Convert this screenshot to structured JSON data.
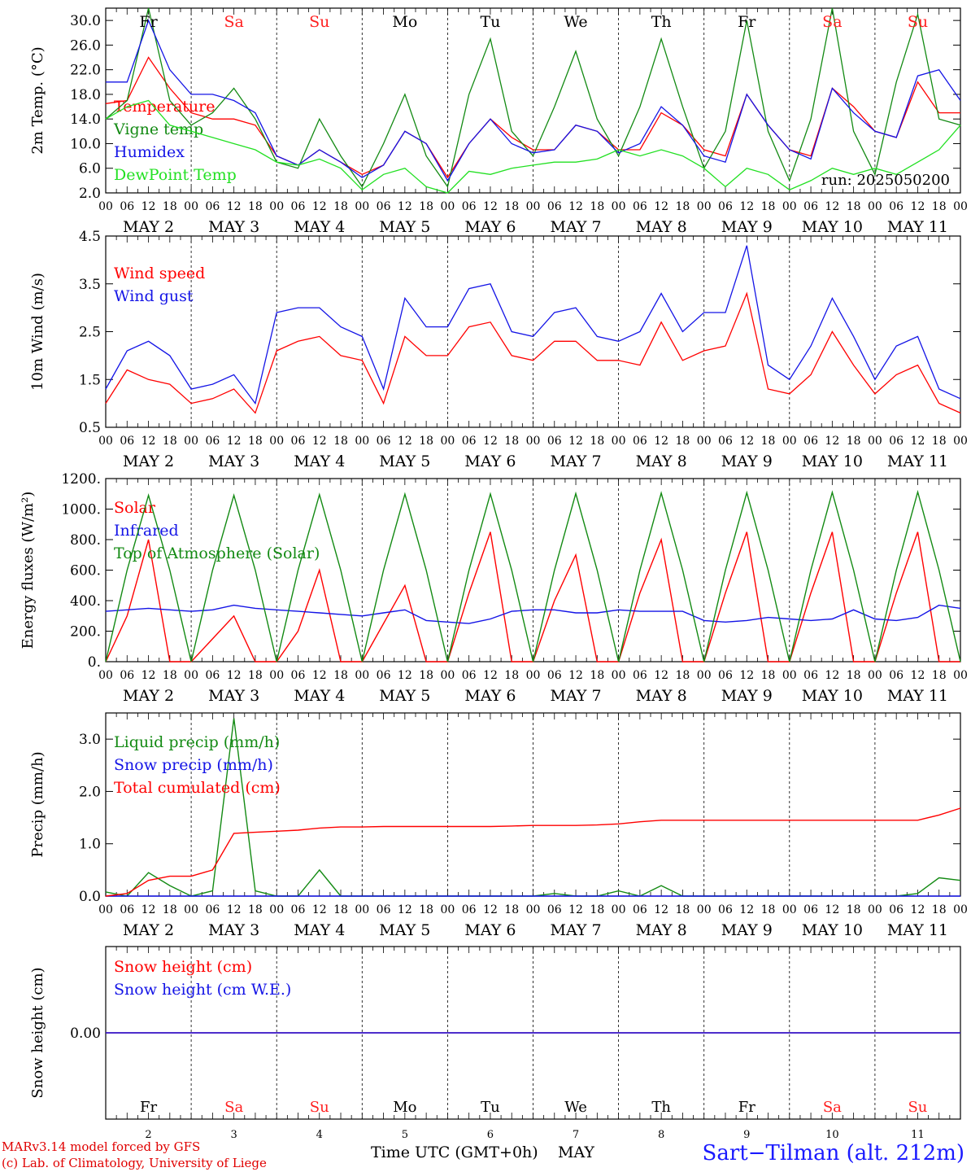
{
  "colors": {
    "red": "#ff0000",
    "green": "#138a13",
    "blue": "#1414e6",
    "lightgreen": "#22e022",
    "weekend": "#ff2020",
    "black": "#000000"
  },
  "run_label": "run: 2025050200",
  "footer": {
    "model": "MARv3.14 model forced by GFS",
    "lab": "(c) Lab. of Climatology, University of Liege",
    "time_axis": "Time UTC (GMT+0h)",
    "month": "MAY",
    "station": "Sart−Tilman (alt. 212m)"
  },
  "time_axis": {
    "hour_ticks": [
      "00",
      "06",
      "12",
      "18"
    ],
    "date_labels": [
      "MAY  2",
      "MAY  3",
      "MAY  4",
      "MAY  5",
      "MAY  6",
      "MAY  7",
      "MAY  8",
      "MAY  9",
      "MAY 10",
      "MAY 11"
    ],
    "weekdays": [
      "Fr",
      "Sa",
      "Su",
      "Mo",
      "Tu",
      "We",
      "Th",
      "Fr",
      "Sa",
      "Su"
    ],
    "weekend": [
      false,
      true,
      true,
      false,
      false,
      false,
      false,
      false,
      true,
      true
    ],
    "day_numbers": [
      "2",
      "3",
      "4",
      "5",
      "6",
      "7",
      "8",
      "9",
      "10",
      "11"
    ]
  },
  "chart_data": [
    {
      "type": "line",
      "ylabel": "2m Temp. (°C)",
      "ylim": [
        2,
        32
      ],
      "yticks": [
        "30.0",
        "26.0",
        "22.0",
        "18.0",
        "14.0",
        "10.0",
        "6.0",
        "2.0"
      ],
      "ytick_values": [
        30,
        26,
        22,
        18,
        14,
        10,
        6,
        2
      ],
      "x_hours": [
        0,
        6,
        12,
        18,
        24,
        30,
        36,
        42,
        48,
        54,
        60,
        66,
        72,
        78,
        84,
        90,
        96,
        102,
        108,
        114,
        120,
        126,
        132,
        138,
        144,
        150,
        156,
        162,
        168,
        174,
        180,
        186,
        192,
        198,
        204,
        210,
        216,
        222,
        228,
        234,
        240
      ],
      "series": [
        {
          "name": "Temperature",
          "color": "#ff0000",
          "values": [
            16.5,
            17,
            24,
            19,
            15,
            14,
            14,
            13,
            8,
            6.5,
            9,
            7,
            5,
            6.5,
            12,
            10,
            4.5,
            10,
            14,
            11,
            9,
            9,
            13,
            12,
            9,
            9,
            15,
            13,
            9,
            8,
            18,
            13,
            9,
            8,
            19,
            16,
            12,
            11,
            20,
            15,
            15
          ]
        },
        {
          "name": "Vigne temp",
          "color": "#138a13",
          "values": [
            14,
            17,
            32,
            17,
            13,
            15,
            19,
            14,
            7,
            6,
            14,
            8,
            3,
            10,
            18,
            8,
            3,
            18,
            27,
            12,
            8,
            16,
            25,
            14,
            8,
            16,
            27,
            16,
            6,
            12,
            30,
            12,
            4,
            14,
            32,
            12,
            5,
            20,
            31,
            14,
            13
          ]
        },
        {
          "name": "Humidex",
          "color": "#1414e6",
          "values": [
            20,
            20,
            30,
            22,
            18,
            18,
            17,
            15,
            8,
            6.5,
            9,
            7,
            4.5,
            6.5,
            12,
            10,
            4,
            10,
            14,
            10,
            8.5,
            9,
            13,
            12,
            8.5,
            10,
            16,
            13,
            8,
            7,
            18,
            13,
            9,
            7.5,
            19,
            15,
            12,
            11,
            21,
            22,
            17
          ]
        },
        {
          "name": "DewPoint Temp",
          "color": "#22e022",
          "values": [
            14,
            16,
            17,
            13,
            12,
            11,
            10,
            9,
            7,
            6.5,
            7.5,
            6,
            2.5,
            5,
            6,
            3,
            2,
            5.5,
            5,
            6,
            6.5,
            7,
            7,
            7.5,
            9,
            8,
            9,
            8,
            6,
            3,
            6,
            5,
            2.5,
            4,
            6,
            5,
            6,
            5,
            7,
            9,
            13
          ]
        }
      ]
    },
    {
      "type": "line",
      "ylabel": "10m Wind (m/s)",
      "ylim": [
        0.5,
        4.5
      ],
      "yticks": [
        "4.5",
        "3.5",
        "2.5",
        "1.5",
        "0.5"
      ],
      "ytick_values": [
        4.5,
        3.5,
        2.5,
        1.5,
        0.5
      ],
      "x_hours": [
        0,
        6,
        12,
        18,
        24,
        30,
        36,
        42,
        48,
        54,
        60,
        66,
        72,
        78,
        84,
        90,
        96,
        102,
        108,
        114,
        120,
        126,
        132,
        138,
        144,
        150,
        156,
        162,
        168,
        174,
        180,
        186,
        192,
        198,
        204,
        210,
        216,
        222,
        228,
        234,
        240
      ],
      "series": [
        {
          "name": "Wind speed",
          "color": "#ff0000",
          "values": [
            1.0,
            1.7,
            1.5,
            1.4,
            1.0,
            1.1,
            1.3,
            0.8,
            2.1,
            2.3,
            2.4,
            2.0,
            1.9,
            1.0,
            2.4,
            2.0,
            2.0,
            2.6,
            2.7,
            2.0,
            1.9,
            2.3,
            2.3,
            1.9,
            1.9,
            1.8,
            2.7,
            1.9,
            2.1,
            2.2,
            3.3,
            1.3,
            1.2,
            1.6,
            2.5,
            1.8,
            1.2,
            1.6,
            1.8,
            1.0,
            0.8
          ]
        },
        {
          "name": "Wind gust",
          "color": "#1414e6",
          "values": [
            1.3,
            2.1,
            2.3,
            2.0,
            1.3,
            1.4,
            1.6,
            1.0,
            2.9,
            3.0,
            3.0,
            2.6,
            2.4,
            1.3,
            3.2,
            2.6,
            2.6,
            3.4,
            3.5,
            2.5,
            2.4,
            2.9,
            3.0,
            2.4,
            2.3,
            2.5,
            3.3,
            2.5,
            2.9,
            2.9,
            4.3,
            1.8,
            1.5,
            2.2,
            3.2,
            2.4,
            1.5,
            2.2,
            2.4,
            1.3,
            1.1
          ]
        }
      ]
    },
    {
      "type": "line",
      "ylabel": "Energy fluxes (W/m²)",
      "ylim": [
        0,
        1200
      ],
      "yticks": [
        "1200.",
        "1000.",
        "800.",
        "600.",
        "400.",
        "200.",
        "0."
      ],
      "ytick_values": [
        1200,
        1000,
        800,
        600,
        400,
        200,
        0
      ],
      "x_hours": [
        0,
        6,
        12,
        18,
        24,
        30,
        36,
        42,
        48,
        54,
        60,
        66,
        72,
        78,
        84,
        90,
        96,
        102,
        108,
        114,
        120,
        126,
        132,
        138,
        144,
        150,
        156,
        162,
        168,
        174,
        180,
        186,
        192,
        198,
        204,
        210,
        216,
        222,
        228,
        234,
        240
      ],
      "series": [
        {
          "name": "Solar",
          "color": "#ff0000",
          "values": [
            0,
            300,
            800,
            0,
            0,
            150,
            300,
            0,
            0,
            200,
            600,
            0,
            0,
            250,
            500,
            0,
            0,
            450,
            850,
            0,
            0,
            400,
            700,
            0,
            0,
            450,
            800,
            0,
            0,
            450,
            850,
            0,
            0,
            450,
            850,
            0,
            0,
            450,
            850,
            0,
            0
          ]
        },
        {
          "name": "Infrared",
          "color": "#1414e6",
          "values": [
            330,
            340,
            350,
            340,
            330,
            340,
            370,
            350,
            340,
            330,
            320,
            310,
            300,
            320,
            340,
            270,
            260,
            250,
            280,
            330,
            340,
            340,
            320,
            320,
            340,
            330,
            330,
            330,
            270,
            260,
            270,
            290,
            280,
            270,
            280,
            340,
            280,
            270,
            290,
            370,
            350
          ]
        },
        {
          "name": "Top of Atmosphere (Solar)",
          "color": "#138a13",
          "values": [
            0,
            600,
            1090,
            600,
            0,
            600,
            1090,
            600,
            0,
            600,
            1095,
            600,
            0,
            600,
            1098,
            600,
            0,
            600,
            1100,
            600,
            0,
            600,
            1102,
            600,
            0,
            600,
            1105,
            600,
            0,
            600,
            1108,
            600,
            0,
            600,
            1110,
            600,
            0,
            600,
            1112,
            600,
            0
          ]
        }
      ]
    },
    {
      "type": "line",
      "ylabel": "Precip (mm/h)",
      "ylim": [
        0,
        3.5
      ],
      "yticks": [
        "3.0",
        "2.0",
        "1.0",
        "0.0"
      ],
      "ytick_values": [
        3,
        2,
        1,
        0
      ],
      "x_hours": [
        0,
        6,
        12,
        18,
        24,
        30,
        36,
        42,
        48,
        54,
        60,
        66,
        72,
        78,
        84,
        90,
        96,
        102,
        108,
        114,
        120,
        126,
        132,
        138,
        144,
        150,
        156,
        162,
        168,
        174,
        180,
        186,
        192,
        198,
        204,
        210,
        216,
        222,
        228,
        234,
        240
      ],
      "series": [
        {
          "name": "Liquid precip (mm/h)",
          "color": "#138a13",
          "values": [
            0.08,
            0.0,
            0.45,
            0.2,
            0.0,
            0.1,
            3.4,
            0.1,
            0.0,
            0.0,
            0.5,
            0.0,
            0.0,
            0.0,
            0.0,
            0.0,
            0.0,
            0.0,
            0.0,
            0.0,
            0.0,
            0.05,
            0.0,
            0.0,
            0.1,
            0.0,
            0.2,
            0.0,
            0.0,
            0.0,
            0.0,
            0.0,
            0.0,
            0.0,
            0.0,
            0.0,
            0.0,
            0.0,
            0.05,
            0.35,
            0.3
          ]
        },
        {
          "name": "Snow precip (mm/h)",
          "color": "#1414e6",
          "values": [
            0,
            0,
            0,
            0,
            0,
            0,
            0,
            0,
            0,
            0,
            0,
            0,
            0,
            0,
            0,
            0,
            0,
            0,
            0,
            0,
            0,
            0,
            0,
            0,
            0,
            0,
            0,
            0,
            0,
            0,
            0,
            0,
            0,
            0,
            0,
            0,
            0,
            0,
            0,
            0,
            0
          ]
        },
        {
          "name": "Total cumulated (cm)",
          "color": "#ff0000",
          "values": [
            0.0,
            0.05,
            0.3,
            0.38,
            0.38,
            0.5,
            1.2,
            1.22,
            1.24,
            1.26,
            1.3,
            1.32,
            1.32,
            1.33,
            1.33,
            1.33,
            1.33,
            1.33,
            1.33,
            1.34,
            1.35,
            1.35,
            1.35,
            1.36,
            1.38,
            1.42,
            1.45,
            1.45,
            1.45,
            1.45,
            1.45,
            1.45,
            1.45,
            1.45,
            1.45,
            1.45,
            1.45,
            1.45,
            1.45,
            1.55,
            1.68
          ]
        }
      ]
    },
    {
      "type": "line",
      "ylabel": "Snow height (cm)",
      "ylim": [
        -1,
        1
      ],
      "yticks": [
        "0.00"
      ],
      "ytick_values": [
        0
      ],
      "x_hours": [
        0,
        240
      ],
      "series": [
        {
          "name": "Snow height (cm)",
          "color": "#ff0000",
          "values": [
            0,
            0
          ]
        },
        {
          "name": "Snow height (cm W.E.)",
          "color": "#1414e6",
          "values": [
            0,
            0
          ]
        }
      ]
    }
  ]
}
